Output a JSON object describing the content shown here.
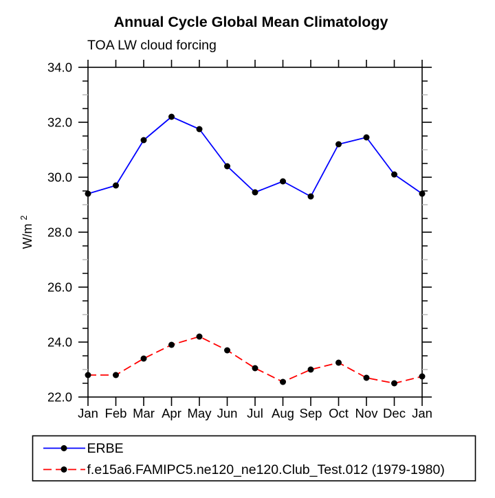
{
  "page": {
    "background_color": "#ffffff"
  },
  "chart": {
    "title": "Annual Cycle Global Mean Climatology",
    "subtitle": "TOA LW cloud forcing",
    "ylabel_base": "W/m",
    "ylabel_exponent": "2"
  },
  "chart_data": {
    "type": "line",
    "title": "Annual Cycle Global Mean Climatology",
    "subtitle": "TOA LW cloud forcing",
    "xlabel": "",
    "ylabel": "W/m^2",
    "categories": [
      "Jan",
      "Feb",
      "Mar",
      "Apr",
      "May",
      "Jun",
      "Jul",
      "Aug",
      "Sep",
      "Oct",
      "Nov",
      "Dec",
      "Jan"
    ],
    "ylim": [
      22.0,
      34.0
    ],
    "ytick_step": 2.0,
    "ytick_labels": [
      "22.0",
      "24.0",
      "26.0",
      "28.0",
      "30.0",
      "32.0",
      "34.0"
    ],
    "minor_tick_step": 0.5,
    "grid": false,
    "legend_position": "bottom-left",
    "series": [
      {
        "name": "ERBE",
        "line_style": "solid",
        "line_color": "#0000ff",
        "marker": "filled-circle",
        "marker_color": "#000000",
        "values": [
          29.4,
          29.7,
          31.35,
          32.2,
          31.75,
          30.4,
          29.45,
          29.85,
          29.3,
          31.2,
          31.45,
          30.1,
          29.4
        ]
      },
      {
        "name": "f.e15a6.FAMIPC5.ne120_ne120.Club_Test.012 (1979-1980)",
        "line_style": "dashed",
        "line_color": "#ff0000",
        "marker": "filled-circle",
        "marker_color": "#000000",
        "values": [
          22.8,
          22.8,
          23.4,
          23.9,
          24.2,
          23.7,
          23.05,
          22.55,
          23.0,
          23.25,
          22.7,
          22.5,
          22.75
        ]
      }
    ]
  },
  "colors": {
    "axis": "#000000",
    "minor_tick_light": "#b9b9b9",
    "text": "#000000"
  }
}
